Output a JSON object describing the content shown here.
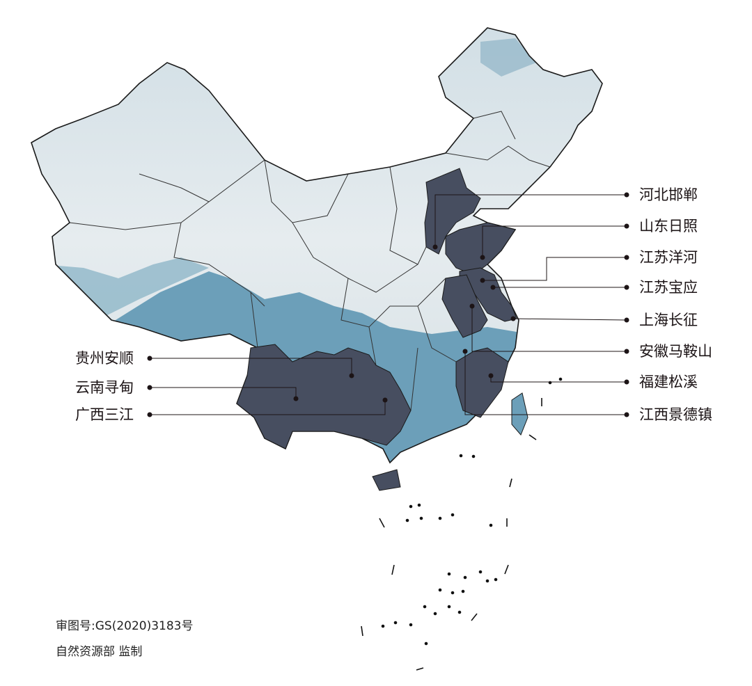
{
  "map": {
    "colors": {
      "highlight_region": "#474e60",
      "sky": "#e3e9ec",
      "mountain": "#6c9fb9",
      "leader_line": "#1c1416"
    },
    "labels_right": [
      {
        "name": "河北邯郸"
      },
      {
        "name": "山东日照"
      },
      {
        "name": "江苏洋河"
      },
      {
        "name": "江苏宝应"
      },
      {
        "name": "上海长征"
      },
      {
        "name": "安徽马鞍山"
      },
      {
        "name": "福建松溪"
      },
      {
        "name": "江西景德镇"
      }
    ],
    "labels_left": [
      {
        "name": "贵州安顺"
      },
      {
        "name": "云南寻甸"
      },
      {
        "name": "广西三江"
      }
    ]
  },
  "footer": {
    "approval_number": "审图号:GS(2020)3183号",
    "issuer": "自然资源部 监制"
  }
}
